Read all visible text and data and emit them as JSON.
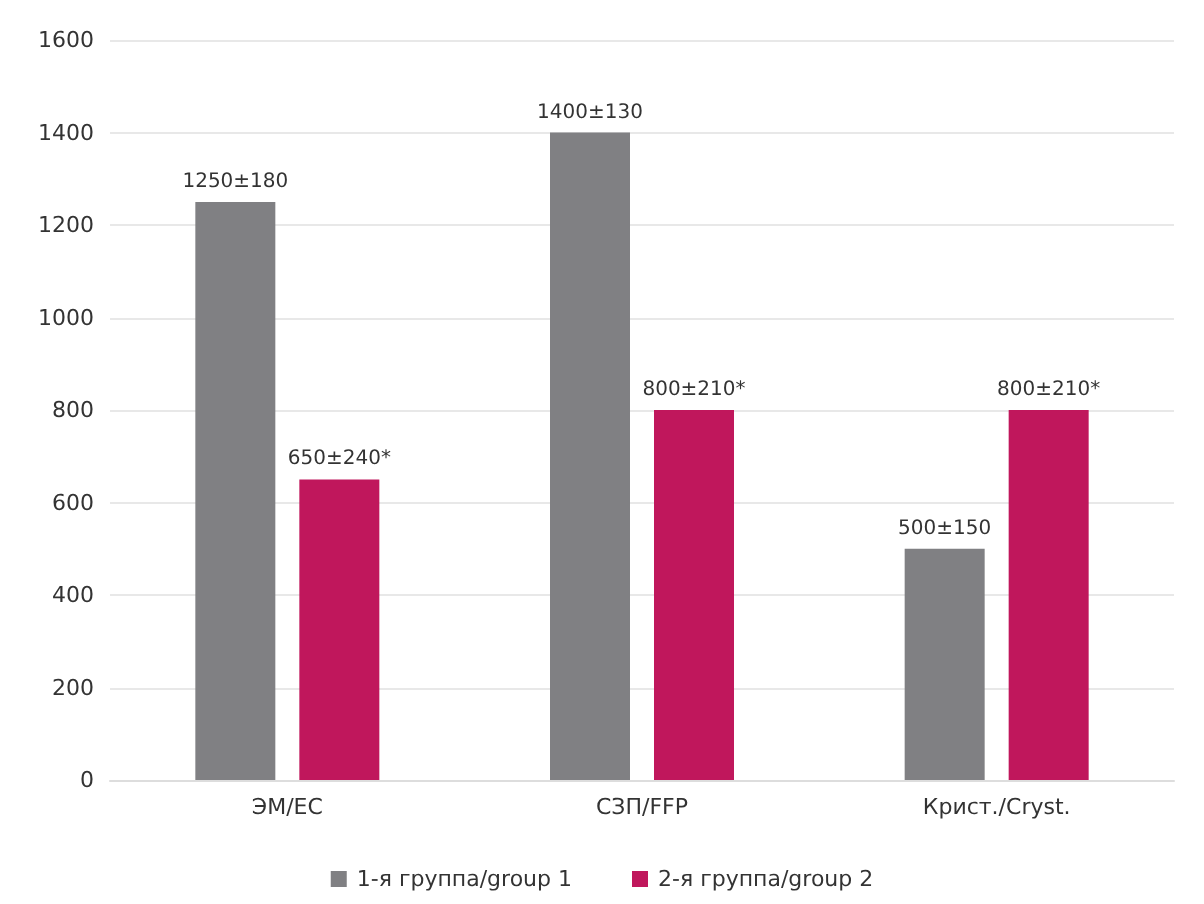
{
  "chart_data": {
    "type": "bar",
    "categories": [
      "ЭМ/EC",
      "СЗП/FFP",
      "Крист./Cryst."
    ],
    "series": [
      {
        "name": "1-я группа/group 1",
        "color": "#808083",
        "values": [
          1250,
          1400,
          500
        ],
        "value_labels": [
          "1250±180",
          "1400±130",
          "500±150"
        ]
      },
      {
        "name": "2-я группа/group 2",
        "color": "#c0175c",
        "values": [
          650,
          800,
          800
        ],
        "value_labels": [
          "650±240*",
          "800±210*",
          "800±210*"
        ]
      }
    ],
    "ylim": [
      0,
      1600
    ],
    "yticks": [
      0,
      200,
      400,
      600,
      800,
      1000,
      1200,
      1400,
      1600
    ],
    "grid": "y",
    "legend": "bottom"
  }
}
